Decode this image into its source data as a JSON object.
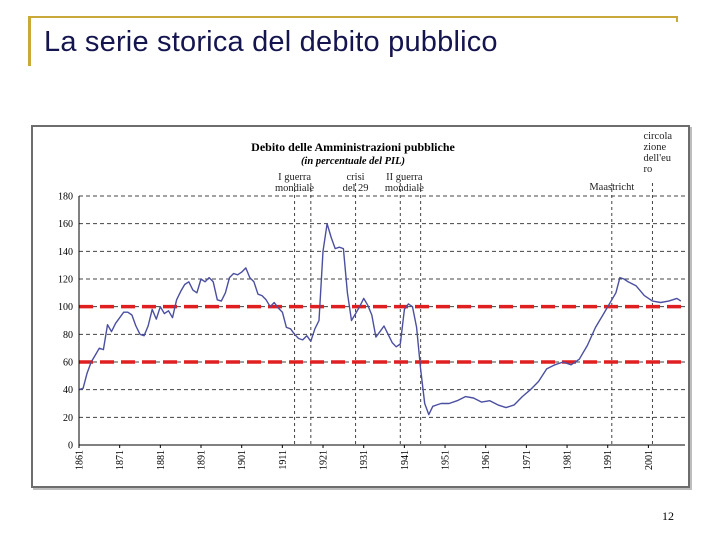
{
  "slide": {
    "title": "La serie storica del debito pubblico",
    "page_number": "12"
  },
  "colors": {
    "frame": "#c8a93a",
    "title": "#14144f",
    "series": "#4b4fa0",
    "reference_lines": "#e02020"
  },
  "chart_data": {
    "type": "line",
    "title": "Debito delle Amministrazioni pubbliche",
    "subtitle": "(in percentuale del PIL)",
    "xlabel": "",
    "ylabel": "",
    "xlim": [
      1861,
      2010
    ],
    "ylim": [
      0,
      180
    ],
    "y_ticks": [
      0,
      20,
      40,
      60,
      80,
      100,
      120,
      140,
      160,
      180
    ],
    "x_ticks": [
      "1861",
      "1871",
      "1881",
      "1891",
      "1901",
      "1911",
      "1921",
      "1931",
      "1941",
      "1951",
      "1961",
      "1971",
      "1981",
      "1991",
      "2001"
    ],
    "grid": true,
    "series": [
      {
        "x": [
          1861,
          1862,
          1863,
          1864,
          1865,
          1866,
          1867,
          1868,
          1869,
          1870,
          1871,
          1872,
          1873,
          1874,
          1875,
          1876,
          1877,
          1878,
          1879,
          1880,
          1881,
          1882,
          1883,
          1884,
          1885,
          1886,
          1887,
          1888,
          1889,
          1890,
          1891,
          1892,
          1893,
          1894,
          1895,
          1896,
          1897,
          1898,
          1899,
          1900,
          1901,
          1902,
          1903,
          1904,
          1905,
          1906,
          1907,
          1908,
          1909,
          1910,
          1911,
          1912,
          1913,
          1914,
          1915,
          1916,
          1917,
          1918,
          1919,
          1920,
          1921,
          1922,
          1923,
          1924,
          1925,
          1926,
          1927,
          1928,
          1929,
          1930,
          1931,
          1932,
          1933,
          1934,
          1935,
          1936,
          1937,
          1938,
          1939,
          1940,
          1941,
          1942,
          1943,
          1944,
          1945,
          1946,
          1947,
          1948,
          1949,
          1950,
          1952,
          1954,
          1956,
          1958,
          1960,
          1962,
          1964,
          1966,
          1968,
          1970,
          1972,
          1974,
          1976,
          1978,
          1980,
          1982,
          1984,
          1986,
          1988,
          1990,
          1992,
          1993,
          1994,
          1995,
          1996,
          1998,
          2000,
          2002,
          2004,
          2006,
          2008,
          2009
        ],
        "y": [
          40,
          41,
          52,
          60,
          65,
          70,
          69,
          87,
          82,
          88,
          92,
          96,
          96,
          94,
          86,
          80,
          79,
          86,
          98,
          91,
          100,
          95,
          97,
          92,
          105,
          111,
          116,
          118,
          112,
          110,
          120,
          118,
          121,
          118,
          105,
          104,
          110,
          121,
          124,
          123,
          125,
          128,
          121,
          118,
          109,
          108,
          105,
          100,
          103,
          99,
          96,
          85,
          84,
          80,
          77,
          76,
          79,
          75,
          84,
          90,
          140,
          160,
          150,
          142,
          143,
          142,
          110,
          90,
          95,
          100,
          106,
          101,
          94,
          78,
          82,
          86,
          80,
          74,
          71,
          73,
          98,
          102,
          100,
          85,
          55,
          30,
          22,
          28,
          29,
          30,
          30,
          32,
          35,
          34,
          31,
          32,
          29,
          27,
          29,
          35,
          40,
          46,
          55,
          58,
          60,
          58,
          62,
          72,
          85,
          95,
          105,
          110,
          121,
          120,
          118,
          115,
          108,
          104,
          103,
          104,
          106,
          104
        ],
        "style": "solid"
      },
      {
        "name": "",
        "y_const": 100,
        "style": "dashed",
        "role": "reference"
      },
      {
        "name": "",
        "y_const": 60,
        "style": "dashed",
        "role": "reference"
      }
    ],
    "annotations": [
      {
        "x": 1914,
        "lines": [
          "I guerra",
          "mondiale"
        ]
      },
      {
        "x": 1929,
        "lines": [
          "crisi",
          "del 29"
        ]
      },
      {
        "x": 1941,
        "lines": [
          "II guerra",
          "mondiale"
        ]
      },
      {
        "x": 1992,
        "lines": [
          "Maastricht"
        ]
      },
      {
        "x": 2002,
        "lines": [
          "circola",
          "zione",
          "dell'eu",
          "ro"
        ]
      }
    ],
    "vertical_event_lines": [
      1914,
      1918,
      1929,
      1940,
      1945,
      1992,
      2002
    ]
  }
}
